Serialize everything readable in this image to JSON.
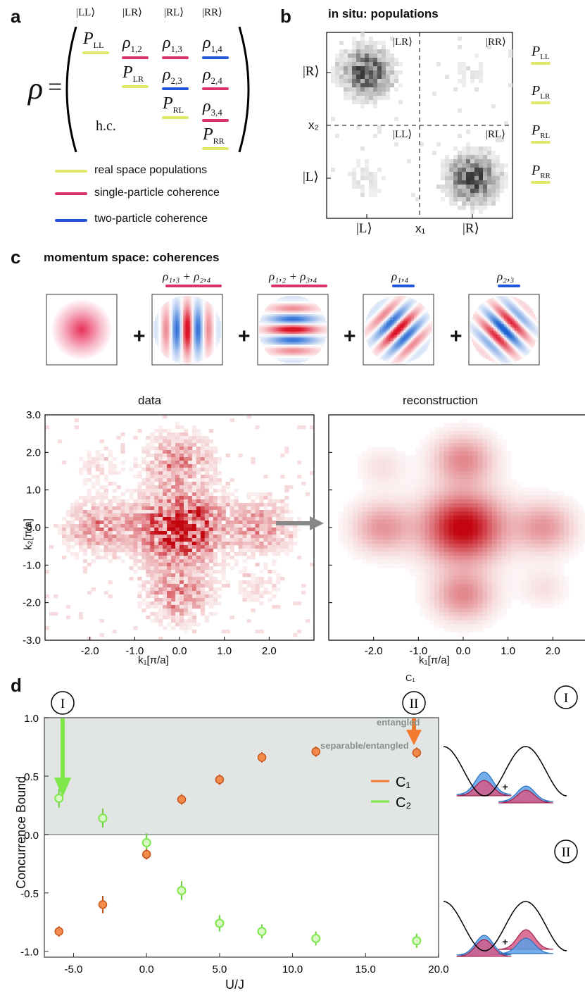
{
  "panel_a": {
    "label": "a",
    "col_headers": [
      "|LL⟩",
      "|LR⟩",
      "|RL⟩",
      "|RR⟩"
    ],
    "rho_symbol": "ρ",
    "equals": "=",
    "entries": {
      "P_LL": "P",
      "P_LL_sub": "LL",
      "r12": "ρ",
      "r12_sub": "1,2",
      "r13": "ρ",
      "r13_sub": "1,3",
      "r14": "ρ",
      "r14_sub": "1,4",
      "P_LR": "P",
      "P_LR_sub": "LR",
      "r23": "ρ",
      "r23_sub": "2,3",
      "r24": "ρ",
      "r24_sub": "2,4",
      "P_RL": "P",
      "P_RL_sub": "RL",
      "r34": "ρ",
      "r34_sub": "3,4",
      "P_RR": "P",
      "P_RR_sub": "RR"
    },
    "hc": "h.c.",
    "legend": [
      {
        "label": "real space populations",
        "color": "#dfe86a"
      },
      {
        "label": "single-particle coherence",
        "color": "#d8336e"
      },
      {
        "label": "two-particle coherence",
        "color": "#2356d8"
      }
    ]
  },
  "panel_b": {
    "label": "b",
    "title": "in situ: populations",
    "quadrant_labels": [
      "|LR⟩",
      "|RR⟩",
      "|LL⟩",
      "|RL⟩"
    ],
    "y_ticks": [
      "|R⟩",
      "|L⟩"
    ],
    "x_ticks": [
      "|L⟩",
      "|R⟩"
    ],
    "xlabel": "x₁",
    "ylabel": "x₂",
    "side_labels": [
      {
        "p": "P",
        "sub": "LL"
      },
      {
        "p": "P",
        "sub": "LR"
      },
      {
        "p": "P",
        "sub": "RL"
      },
      {
        "p": "P",
        "sub": "RR"
      }
    ]
  },
  "panel_c": {
    "label": "c",
    "title": "momentum space: coherences",
    "term_labels": [
      {
        "text": "",
        "sub": ""
      },
      {
        "text": "ρ₁,₃ + ρ₂,₄",
        "color": "#d8336e"
      },
      {
        "text": "ρ₁,₂ + ρ₃,₄",
        "color": "#d8336e"
      },
      {
        "text": "ρ₁,₄",
        "color": "#2356d8"
      },
      {
        "text": "ρ₂,₃",
        "color": "#2356d8"
      }
    ],
    "plus": "+",
    "data_title": "data",
    "recon_title": "reconstruction",
    "x_ticks": [
      "-2.0",
      "-1.0",
      "0.0",
      "1.0",
      "2.0"
    ],
    "y_ticks": [
      "3.0",
      "2.0",
      "1.0",
      "0.0",
      "-1.0",
      "-2.0",
      "-3.0"
    ],
    "xlabel": "k₁[π/a]",
    "ylabel": "k₂[π/a]"
  },
  "panel_d": {
    "label": "d",
    "marker_I": "I",
    "marker_II": "II",
    "entangled_text": "entangled",
    "separable_text": "separable/entangled",
    "legend": [
      {
        "name": "C₁",
        "color": "#f07a30"
      },
      {
        "name": "C₂",
        "color": "#7ee84a"
      }
    ],
    "inset_plus": "+"
  },
  "chart_data": {
    "type": "scatter",
    "title": "",
    "xlabel": "U/J",
    "ylabel": "Concurrence Bound",
    "xlim": [
      -7,
      20
    ],
    "ylim": [
      -1.05,
      1.0
    ],
    "x_ticks": [
      "-5.0",
      "0.0",
      "5.0",
      "10.0",
      "15.0",
      "20.0"
    ],
    "y_ticks": [
      "1.0",
      "0.5",
      "0.0",
      "-0.5",
      "-1.0"
    ],
    "series": [
      {
        "name": "C₁",
        "color": "#f07a30",
        "x": [
          -6.0,
          -3.0,
          0.0,
          2.4,
          5.0,
          7.9,
          11.6,
          18.5
        ],
        "y": [
          -0.83,
          -0.6,
          -0.17,
          0.3,
          0.47,
          0.66,
          0.71,
          0.7
        ],
        "err": [
          0.02,
          0.05,
          0.02,
          0.02,
          0.02,
          0.02,
          0.02,
          0.02
        ]
      },
      {
        "name": "C₂",
        "color": "#7ee84a",
        "x": [
          -6.0,
          -3.0,
          0.0,
          2.4,
          5.0,
          7.9,
          11.6,
          18.5
        ],
        "y": [
          0.31,
          0.14,
          -0.07,
          -0.48,
          -0.76,
          -0.83,
          -0.89,
          -0.91
        ],
        "err": [
          0.05,
          0.05,
          0.05,
          0.05,
          0.04,
          0.03,
          0.03,
          0.03
        ]
      }
    ]
  }
}
